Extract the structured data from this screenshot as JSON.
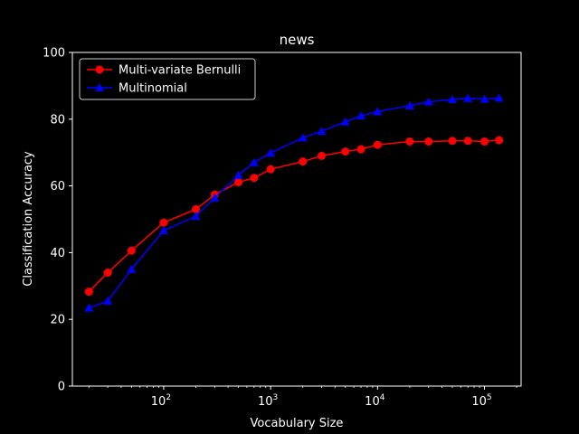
{
  "chart_data": {
    "type": "line",
    "title": "news",
    "xlabel": "Vocabulary Size",
    "ylabel": "Classification Accuracy",
    "xscale": "log",
    "xlim": [
      14,
      220000
    ],
    "ylim": [
      0,
      100
    ],
    "yticks": [
      0,
      20,
      40,
      60,
      80,
      100
    ],
    "xticks": [
      {
        "value": 100,
        "base": "10",
        "exp": "2"
      },
      {
        "value": 1000,
        "base": "10",
        "exp": "3"
      },
      {
        "value": 10000,
        "base": "10",
        "exp": "4"
      },
      {
        "value": 100000,
        "base": "10",
        "exp": "5"
      }
    ],
    "grid": false,
    "legend_position": "top-left",
    "series": [
      {
        "name": "Multi-variate Bernulli",
        "color": "#ff0000",
        "marker": "circle",
        "x": [
          20,
          30,
          50,
          100,
          200,
          300,
          500,
          700,
          1000,
          2000,
          3000,
          5000,
          7000,
          10000,
          20000,
          30000,
          50000,
          70000,
          100000,
          137000
        ],
        "y": [
          28.3,
          34.0,
          40.6,
          49.0,
          53.0,
          57.4,
          61.1,
          62.4,
          65.0,
          67.3,
          69.0,
          70.3,
          71.0,
          72.3,
          73.3,
          73.3,
          73.5,
          73.5,
          73.3,
          73.7
        ]
      },
      {
        "name": "Multinomial",
        "color": "#0000ff",
        "marker": "triangle",
        "x": [
          20,
          30,
          50,
          100,
          200,
          300,
          500,
          700,
          1000,
          2000,
          3000,
          5000,
          7000,
          10000,
          20000,
          30000,
          50000,
          70000,
          100000,
          137000
        ],
        "y": [
          23.4,
          25.5,
          35.0,
          46.6,
          50.9,
          56.4,
          63.2,
          67.0,
          69.9,
          74.4,
          76.4,
          79.2,
          81.0,
          82.3,
          84.0,
          85.2,
          85.9,
          86.2,
          86.0,
          86.3
        ]
      }
    ]
  }
}
